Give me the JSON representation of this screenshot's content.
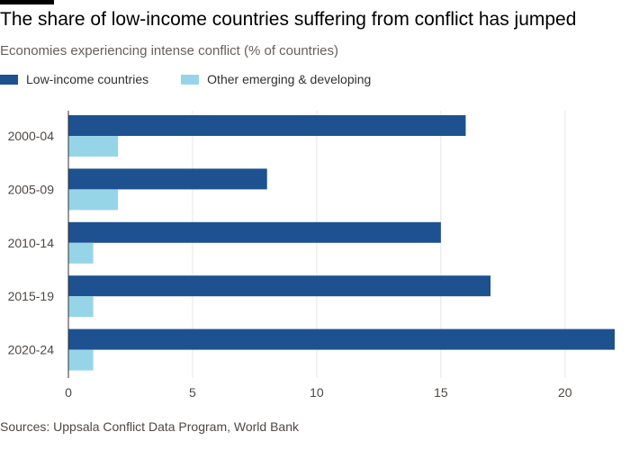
{
  "chart_data": {
    "type": "bar",
    "orientation": "horizontal",
    "title": "The share of low-income countries suffering from conflict has jumped",
    "subtitle": "Economies experiencing intense conflict (% of countries)",
    "categories": [
      "2000-04",
      "2005-09",
      "2010-14",
      "2015-19",
      "2020-24"
    ],
    "series": [
      {
        "name": "Low-income countries",
        "color": "#1e5190",
        "values": [
          16,
          8,
          15,
          17,
          22
        ]
      },
      {
        "name": "Other emerging & developing",
        "color": "#96d5e8",
        "values": [
          2,
          2,
          1,
          1,
          1
        ]
      }
    ],
    "xlim": [
      0,
      22
    ],
    "xticks": [
      0,
      5,
      10,
      15,
      20
    ],
    "grid": true,
    "legend_position": "top-left",
    "source": "Sources: Uppsala Conflict Data Program, World Bank"
  }
}
